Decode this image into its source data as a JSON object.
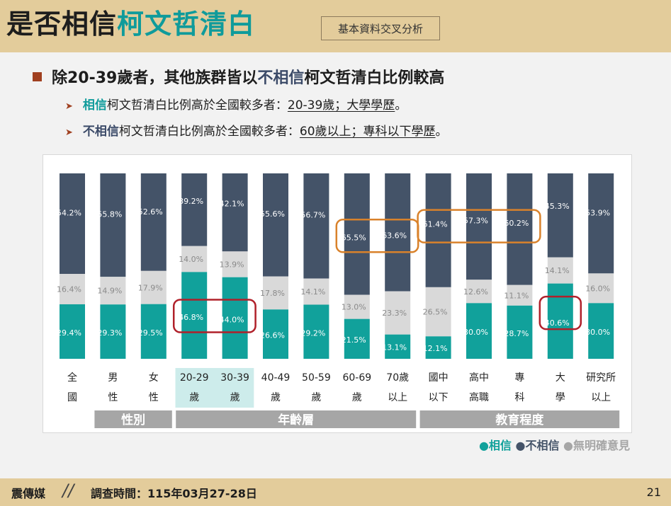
{
  "header": {
    "title_part1": "是否相信",
    "title_part2": "柯文哲清白",
    "tag": "基本資料交叉分析"
  },
  "summary": {
    "main_part1": "除20-39歲者，其他族群皆以",
    "main_part2": "不相信",
    "main_part3": "柯文哲清白比例較高",
    "line1_strong": "相信",
    "line1_mid": "柯文哲清白比例高於全國較多者：",
    "line1_under": "20-39歲；大學學歷",
    "line1_end": "。",
    "line2_strong": "不相信",
    "line2_mid": "柯文哲清白比例高於全國較多者：",
    "line2_under": "60歲以上；專科以下學歷",
    "line2_end": "。"
  },
  "chart_data": {
    "type": "bar",
    "stacked": true,
    "categories": [
      [
        "全",
        "國"
      ],
      [
        "男",
        "性"
      ],
      [
        "女",
        "性"
      ],
      [
        "20-29",
        "歲"
      ],
      [
        "30-39",
        "歲"
      ],
      [
        "40-49",
        "歲"
      ],
      [
        "50-59",
        "歲"
      ],
      [
        "60-69",
        "歲"
      ],
      [
        "70歲",
        "以上"
      ],
      [
        "國中",
        "以下"
      ],
      [
        "高中",
        "高職"
      ],
      [
        "專",
        "科"
      ],
      [
        "大",
        "學"
      ],
      [
        "研究所",
        "以上"
      ]
    ],
    "series": [
      {
        "name": "相信",
        "color": "#11a19b",
        "values": [
          29.4,
          29.3,
          29.5,
          46.8,
          44.0,
          26.6,
          29.2,
          21.5,
          13.1,
          12.1,
          30.0,
          28.7,
          40.6,
          30.0
        ]
      },
      {
        "name": "無明確意見",
        "color": "#d9d9d9",
        "values": [
          16.4,
          14.9,
          17.9,
          14.0,
          13.9,
          17.8,
          14.1,
          13.0,
          23.3,
          26.5,
          12.6,
          11.1,
          14.1,
          16.0
        ]
      },
      {
        "name": "不相信",
        "color": "#445368",
        "values": [
          54.2,
          55.8,
          52.6,
          39.2,
          42.1,
          55.6,
          56.7,
          65.5,
          63.6,
          61.4,
          57.3,
          60.2,
          45.3,
          53.9
        ]
      }
    ],
    "value_labels": {
      "trust": [
        "29.4%",
        "29.3%",
        "29.5%",
        "46.8%",
        "44.0%",
        "26.6%",
        "29.2%",
        "21.5%",
        "13.1%",
        "12.1%",
        "30.0%",
        "28.7%",
        "40.6%",
        "30.0%"
      ],
      "neutral": [
        "16.4%",
        "14.9%",
        "17.9%",
        "14.0%",
        "13.9%",
        "17.8%",
        "14.1%",
        "13.0%",
        "23.3%",
        "26.5%",
        "12.6%",
        "11.1%",
        "14.1%",
        "16.0%"
      ],
      "distrust": [
        "54.2%",
        "55.8%",
        "52.6%",
        "39.2%",
        "42.1%",
        "55.6%",
        "56.7%",
        "65.5%",
        "63.6%",
        "61.4%",
        "57.3%",
        "60.2%",
        "45.3%",
        "53.9%"
      ]
    },
    "highlighted_categories": [
      3,
      4
    ],
    "groups": [
      {
        "label": "性別",
        "from": 1,
        "to": 2
      },
      {
        "label": "年齡層",
        "from": 3,
        "to": 8
      },
      {
        "label": "教育程度",
        "from": 9,
        "to": 13
      }
    ],
    "annotations": [
      {
        "series": "相信",
        "from": 3,
        "to": 4,
        "color": "#b0202a"
      },
      {
        "series": "相信",
        "from": 12,
        "to": 12,
        "color": "#b0202a"
      },
      {
        "series": "不相信",
        "from": 7,
        "to": 8,
        "color": "#d9822b"
      },
      {
        "series": "不相信",
        "from": 9,
        "to": 11,
        "color": "#d9822b"
      }
    ],
    "ylim": [
      0,
      100
    ]
  },
  "legend": {
    "trust": "●相信",
    "distrust": "●不相信",
    "neutral": "●無明確意見",
    "trust_color": "#11a19b",
    "distrust_color": "#445368",
    "neutral_color": "#a6a6a6"
  },
  "footer": {
    "brand": "震傳媒",
    "separator": "//",
    "survey_date": "調查時間：115年03月27-28日",
    "page": "21"
  }
}
